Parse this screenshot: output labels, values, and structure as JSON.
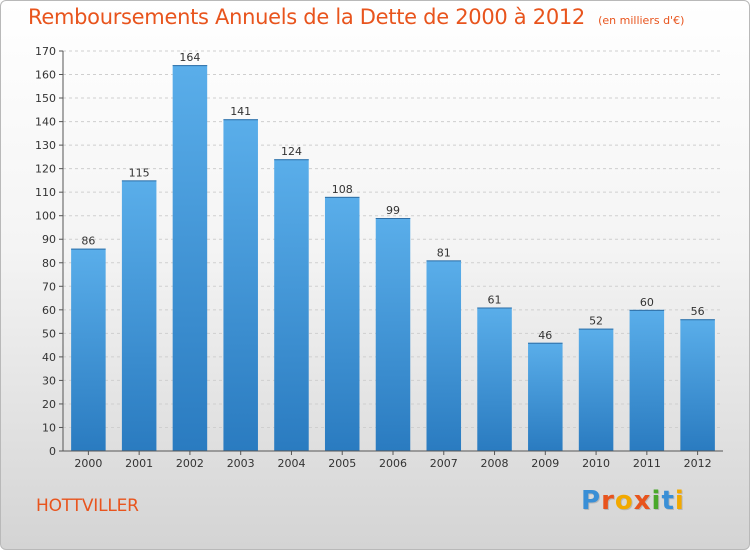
{
  "header": {
    "title": "Remboursements Annuels de la Dette de 2000 à 2012",
    "subtitle": "(en milliers d'€)"
  },
  "footer": {
    "commune": "HOTTVILLER",
    "brand": "Proxiti",
    "brand_colors": [
      "#3a8fd6",
      "#e8541d",
      "#f2a900",
      "#e8541d",
      "#4aa82b",
      "#3a8fd6",
      "#f2a900"
    ]
  },
  "colors": {
    "accent": "#e8541d",
    "bar_top": "#5aaeea",
    "bar_bottom": "#2a7bc0",
    "grid": "#cfcfcf",
    "axis": "#555555",
    "label": "#333333"
  },
  "chart_data": {
    "type": "bar",
    "title": "Remboursements Annuels de la Dette de 2000 à 2012",
    "subtitle": "(en milliers d'€)",
    "categories": [
      "2000",
      "2001",
      "2002",
      "2003",
      "2004",
      "2005",
      "2006",
      "2007",
      "2008",
      "2009",
      "2010",
      "2011",
      "2012"
    ],
    "values": [
      86,
      115,
      164,
      141,
      124,
      108,
      99,
      81,
      61,
      46,
      52,
      60,
      56
    ],
    "data_labels": [
      "86",
      "115",
      "164",
      "141",
      "124",
      "108",
      "99",
      "81",
      "61",
      "46",
      "52",
      "60",
      "56"
    ],
    "ylim": [
      0,
      170
    ],
    "yticks": [
      0,
      10,
      20,
      30,
      40,
      50,
      60,
      70,
      80,
      90,
      100,
      110,
      120,
      130,
      140,
      150,
      160,
      170
    ],
    "grid": true,
    "legend": "none",
    "xlabel": "",
    "ylabel": ""
  }
}
